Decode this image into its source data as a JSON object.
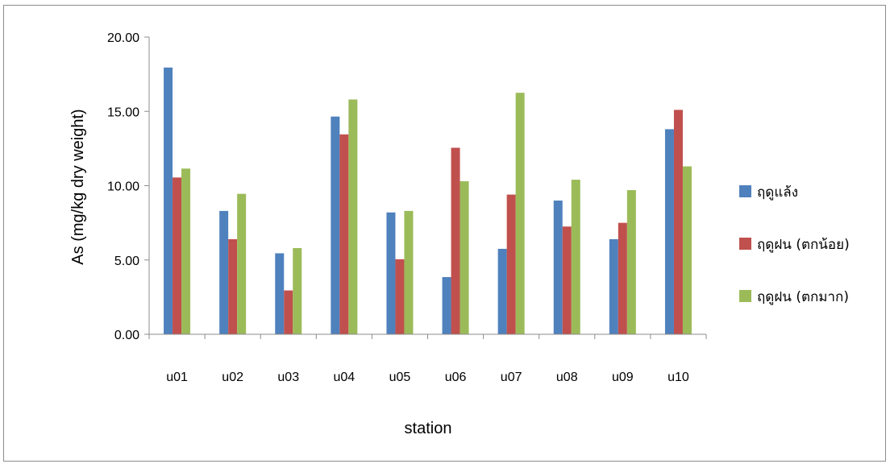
{
  "chart_data": {
    "type": "bar",
    "title": "",
    "xlabel": "station",
    "ylabel": "As (mg/kg dry weight)",
    "ylim": [
      0,
      20
    ],
    "yticks": [
      "0.00",
      "5.00",
      "10.00",
      "15.00",
      "20.00"
    ],
    "grid": false,
    "legend_position": "right",
    "categories": [
      "u01",
      "u02",
      "u03",
      "u04",
      "u05",
      "u06",
      "u07",
      "u08",
      "u09",
      "u10"
    ],
    "series": [
      {
        "name": "ฤดูแล้ง",
        "color": "#4F81BD",
        "values": [
          17.95,
          8.3,
          5.45,
          14.65,
          8.2,
          3.85,
          5.75,
          9.0,
          6.4,
          13.8
        ]
      },
      {
        "name": "ฤดูฝน (ตกน้อย)",
        "color": "#C0504D",
        "values": [
          10.55,
          6.4,
          2.95,
          13.45,
          5.05,
          12.55,
          9.4,
          7.25,
          7.5,
          15.1
        ]
      },
      {
        "name": "ฤดูฝน (ตกมาก)",
        "color": "#9BBB59",
        "values": [
          11.15,
          9.45,
          5.8,
          15.8,
          8.3,
          10.3,
          16.25,
          10.4,
          9.7,
          11.3
        ]
      }
    ]
  }
}
